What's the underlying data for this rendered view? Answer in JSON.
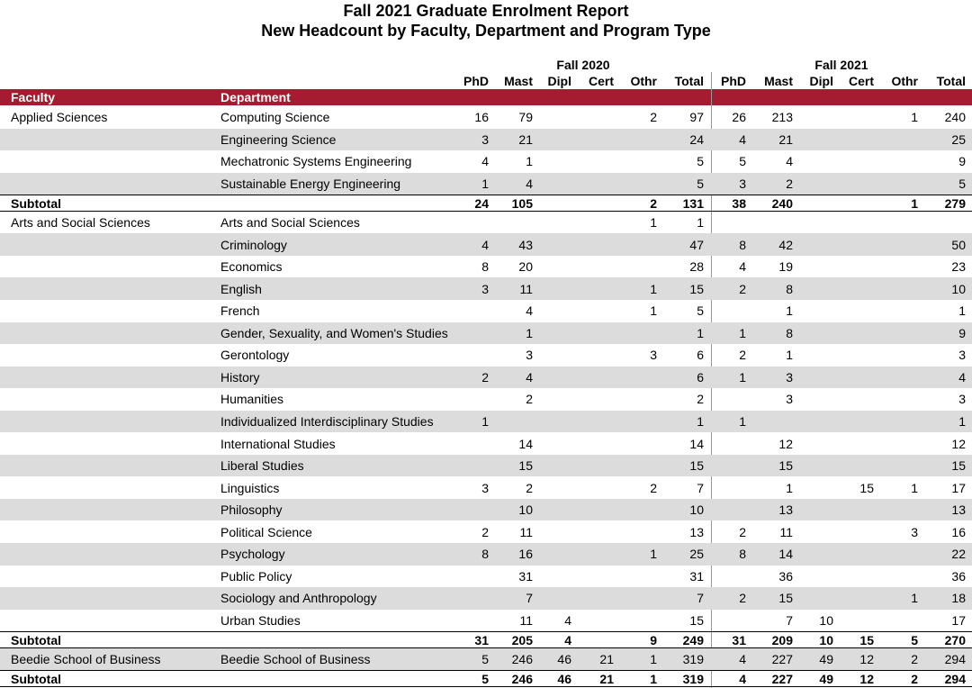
{
  "header": {
    "title": "Fall 2021 Graduate Enrolment Report",
    "subtitle": "New Headcount by Faculty, Department and Program Type"
  },
  "table": {
    "terms": [
      "Fall 2020",
      "Fall 2021"
    ],
    "columns": [
      "PhD",
      "Mast",
      "Dipl",
      "Cert",
      "Othr",
      "Total"
    ],
    "label_headers": [
      "Faculty",
      "Department"
    ],
    "rows": [
      {
        "faculty": "Applied Sciences",
        "department": "Computing Science",
        "fall_2020": [
          16,
          79,
          null,
          null,
          2,
          97
        ],
        "fall_2021": [
          26,
          213,
          null,
          null,
          1,
          240
        ]
      },
      {
        "department": "Engineering Science",
        "fall_2020": [
          3,
          21,
          null,
          null,
          null,
          24
        ],
        "fall_2021": [
          4,
          21,
          null,
          null,
          null,
          25
        ]
      },
      {
        "department": "Mechatronic Systems Engineering",
        "fall_2020": [
          4,
          1,
          null,
          null,
          null,
          5
        ],
        "fall_2021": [
          5,
          4,
          null,
          null,
          null,
          9
        ]
      },
      {
        "department": "Sustainable Energy Engineering",
        "fall_2020": [
          1,
          4,
          null,
          null,
          null,
          5
        ],
        "fall_2021": [
          3,
          2,
          null,
          null,
          null,
          5
        ]
      },
      {
        "label": "Subtotal",
        "fall_2020": [
          24,
          105,
          null,
          null,
          2,
          131
        ],
        "fall_2021": [
          38,
          240,
          null,
          null,
          1,
          279
        ]
      },
      {
        "faculty": "Arts and Social Sciences",
        "department": "Arts and Social Sciences",
        "fall_2020": [
          null,
          null,
          null,
          null,
          1,
          1
        ],
        "fall_2021": [
          null,
          null,
          null,
          null,
          null,
          null
        ]
      },
      {
        "department": "Criminology",
        "fall_2020": [
          4,
          43,
          null,
          null,
          null,
          47
        ],
        "fall_2021": [
          8,
          42,
          null,
          null,
          null,
          50
        ]
      },
      {
        "department": "Economics",
        "fall_2020": [
          8,
          20,
          null,
          null,
          null,
          28
        ],
        "fall_2021": [
          4,
          19,
          null,
          null,
          null,
          23
        ]
      },
      {
        "department": "English",
        "fall_2020": [
          3,
          11,
          null,
          null,
          1,
          15
        ],
        "fall_2021": [
          2,
          8,
          null,
          null,
          null,
          10
        ]
      },
      {
        "department": "French",
        "fall_2020": [
          null,
          4,
          null,
          null,
          1,
          5
        ],
        "fall_2021": [
          null,
          1,
          null,
          null,
          null,
          1
        ]
      },
      {
        "department": "Gender, Sexuality, and Women's Studies",
        "fall_2020": [
          null,
          1,
          null,
          null,
          null,
          1
        ],
        "fall_2021": [
          1,
          8,
          null,
          null,
          null,
          9
        ]
      },
      {
        "department": "Gerontology",
        "fall_2020": [
          null,
          3,
          null,
          null,
          3,
          6
        ],
        "fall_2021": [
          2,
          1,
          null,
          null,
          null,
          3
        ]
      },
      {
        "department": "History",
        "fall_2020": [
          2,
          4,
          null,
          null,
          null,
          6
        ],
        "fall_2021": [
          1,
          3,
          null,
          null,
          null,
          4
        ]
      },
      {
        "department": "Humanities",
        "fall_2020": [
          null,
          2,
          null,
          null,
          null,
          2
        ],
        "fall_2021": [
          null,
          3,
          null,
          null,
          null,
          3
        ]
      },
      {
        "department": "Individualized Interdisciplinary Studies",
        "fall_2020": [
          1,
          null,
          null,
          null,
          null,
          1
        ],
        "fall_2021": [
          1,
          null,
          null,
          null,
          null,
          1
        ]
      },
      {
        "department": "International Studies",
        "fall_2020": [
          null,
          14,
          null,
          null,
          null,
          14
        ],
        "fall_2021": [
          null,
          12,
          null,
          null,
          null,
          12
        ]
      },
      {
        "department": "Liberal Studies",
        "fall_2020": [
          null,
          15,
          null,
          null,
          null,
          15
        ],
        "fall_2021": [
          null,
          15,
          null,
          null,
          null,
          15
        ]
      },
      {
        "department": "Linguistics",
        "fall_2020": [
          3,
          2,
          null,
          null,
          2,
          7
        ],
        "fall_2021": [
          null,
          1,
          null,
          15,
          1,
          17
        ]
      },
      {
        "department": "Philosophy",
        "fall_2020": [
          null,
          10,
          null,
          null,
          null,
          10
        ],
        "fall_2021": [
          null,
          13,
          null,
          null,
          null,
          13
        ]
      },
      {
        "department": "Political Science",
        "fall_2020": [
          2,
          11,
          null,
          null,
          null,
          13
        ],
        "fall_2021": [
          2,
          11,
          null,
          null,
          3,
          16
        ]
      },
      {
        "department": "Psychology",
        "fall_2020": [
          8,
          16,
          null,
          null,
          1,
          25
        ],
        "fall_2021": [
          8,
          14,
          null,
          null,
          null,
          22
        ]
      },
      {
        "department": "Public Policy",
        "fall_2020": [
          null,
          31,
          null,
          null,
          null,
          31
        ],
        "fall_2021": [
          null,
          36,
          null,
          null,
          null,
          36
        ]
      },
      {
        "department": "Sociology and Anthropology",
        "fall_2020": [
          null,
          7,
          null,
          null,
          null,
          7
        ],
        "fall_2021": [
          2,
          15,
          null,
          null,
          1,
          18
        ]
      },
      {
        "department": "Urban Studies",
        "fall_2020": [
          null,
          11,
          4,
          null,
          null,
          15
        ],
        "fall_2021": [
          null,
          7,
          10,
          null,
          null,
          17
        ]
      },
      {
        "label": "Subtotal",
        "fall_2020": [
          31,
          205,
          4,
          null,
          9,
          249
        ],
        "fall_2021": [
          31,
          209,
          10,
          15,
          5,
          270
        ]
      },
      {
        "faculty": "Beedie School of Business",
        "department": "Beedie School of Business",
        "fall_2020": [
          5,
          246,
          46,
          21,
          1,
          319
        ],
        "fall_2021": [
          4,
          227,
          49,
          12,
          2,
          294
        ]
      },
      {
        "label": "Subtotal",
        "fall_2020": [
          5,
          246,
          46,
          21,
          1,
          319
        ],
        "fall_2021": [
          4,
          227,
          49,
          12,
          2,
          294
        ]
      }
    ]
  }
}
